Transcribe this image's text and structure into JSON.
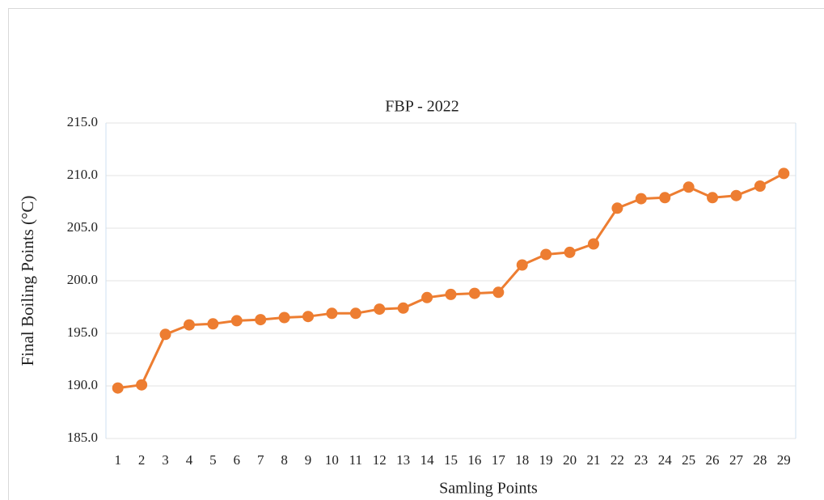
{
  "chart_data": {
    "type": "line",
    "title": "FBP - 2022",
    "x_label": "Samling Points",
    "y_label": "Final Boiling Points (°C)",
    "categories": [
      "1",
      "2",
      "3",
      "4",
      "5",
      "6",
      "7",
      "8",
      "9",
      "10",
      "11",
      "12",
      "13",
      "14",
      "15",
      "16",
      "17",
      "18",
      "19",
      "20",
      "21",
      "22",
      "23",
      "24",
      "25",
      "26",
      "27",
      "28",
      "29"
    ],
    "series": [
      {
        "name": "FBP",
        "color": "#ed7d31",
        "values": [
          189.8,
          190.1,
          194.9,
          195.8,
          195.9,
          196.2,
          196.3,
          196.5,
          196.6,
          196.9,
          196.9,
          197.3,
          197.4,
          198.4,
          198.7,
          198.8,
          198.9,
          201.5,
          202.5,
          202.7,
          203.5,
          206.9,
          207.8,
          207.9,
          208.9,
          207.9,
          208.1,
          209.0,
          210.2
        ]
      }
    ],
    "ylim": [
      185,
      215
    ],
    "yticks": [
      {
        "value": 185,
        "label": "185.0"
      },
      {
        "value": 190,
        "label": "190.0"
      },
      {
        "value": 195,
        "label": "195.0"
      },
      {
        "value": 200,
        "label": "200.0"
      },
      {
        "value": 205,
        "label": "205.0"
      },
      {
        "value": 210,
        "label": "210.0"
      },
      {
        "value": 215,
        "label": "215.0"
      }
    ],
    "grid": true
  }
}
